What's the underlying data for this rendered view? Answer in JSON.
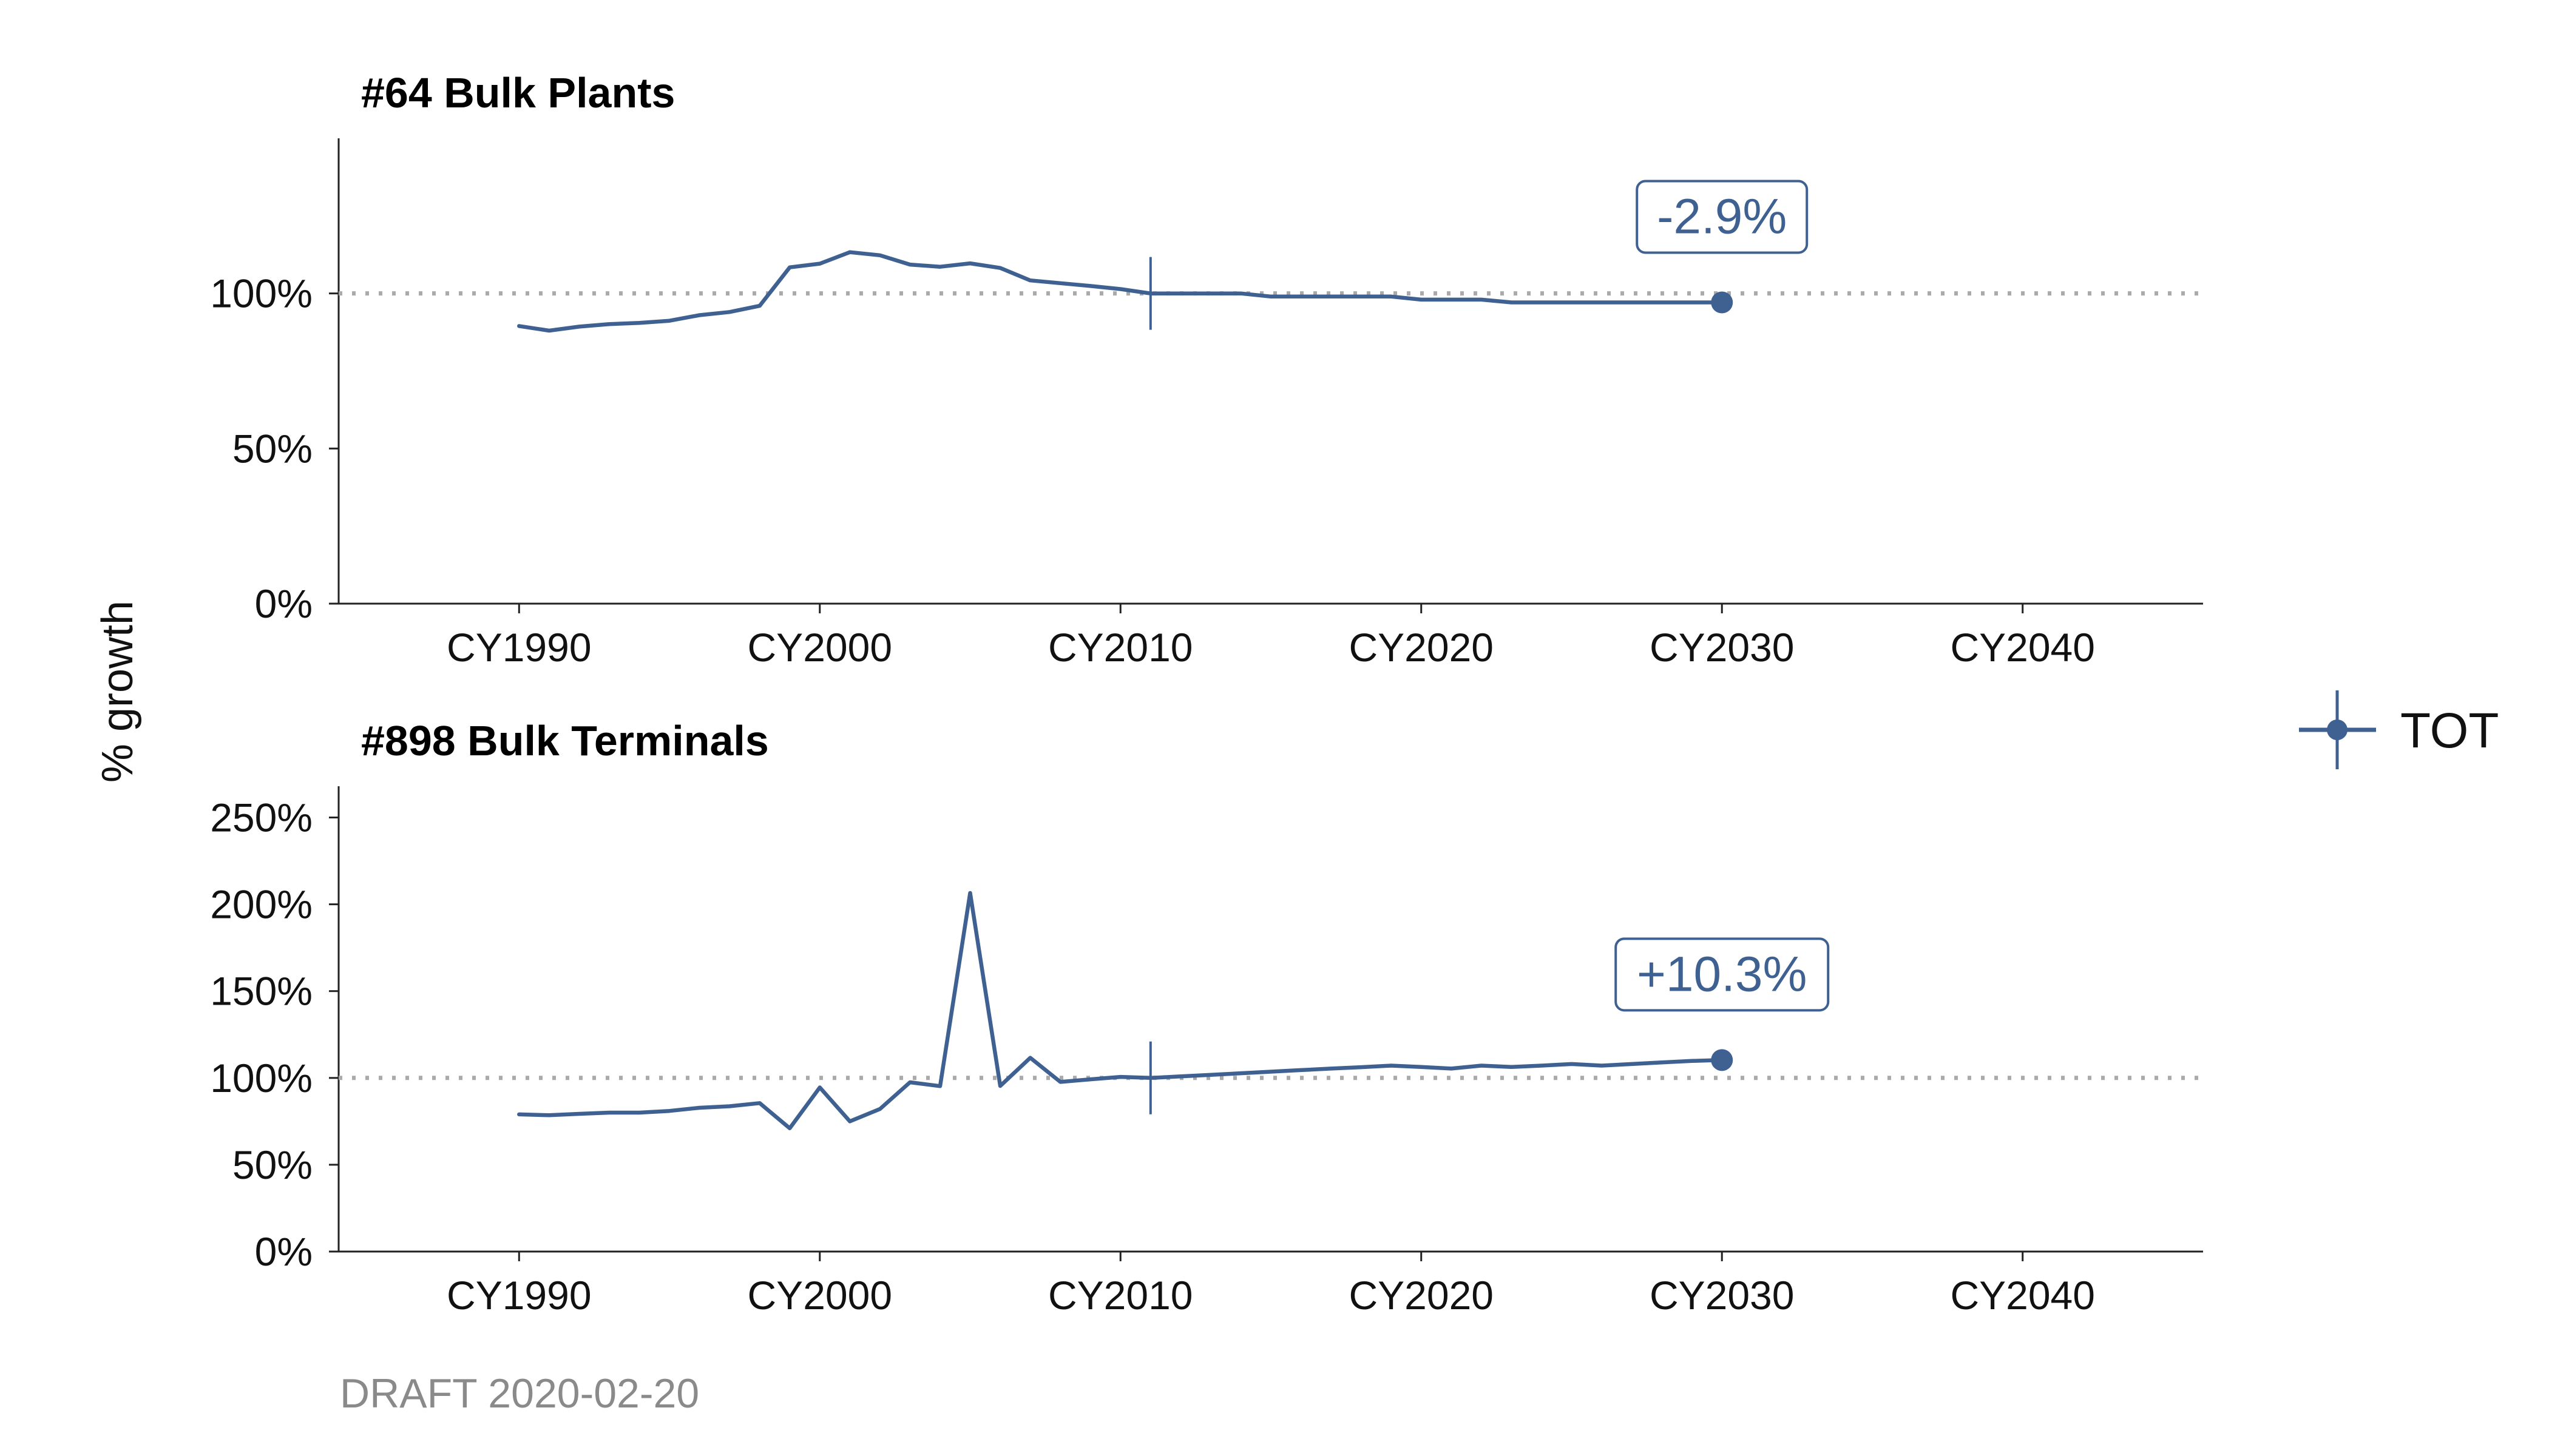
{
  "colors": {
    "series": "#3f6191",
    "reference": "#aaaaaa",
    "axis": "#222222",
    "caption": "#8a8a8a"
  },
  "ylabel": "% growth",
  "caption": "DRAFT 2020-02-20",
  "legend": {
    "label": "TOT",
    "position": "right"
  },
  "chart_data": [
    {
      "type": "line",
      "title": "#64 Bulk Plants",
      "xlabel": "",
      "ylabel": "% growth",
      "xlim": [
        1984,
        2046
      ],
      "ylim": [
        0,
        150
      ],
      "x_ticks": [
        1990,
        2000,
        2010,
        2020,
        2030,
        2040
      ],
      "x_tick_labels": [
        "CY1990",
        "CY2000",
        "CY2010",
        "CY2020",
        "CY2030",
        "CY2040"
      ],
      "y_ticks": [
        0,
        50,
        100
      ],
      "y_tick_labels": [
        "0%",
        "50%",
        "100%"
      ],
      "reference_y": 100,
      "base_year": 2011,
      "series": [
        {
          "name": "TOT",
          "x": [
            1990,
            1991,
            1992,
            1993,
            1994,
            1995,
            1996,
            1997,
            1998,
            1999,
            2000,
            2001,
            2002,
            2003,
            2004,
            2005,
            2006,
            2007,
            2008,
            2009,
            2010,
            2011,
            2012,
            2013,
            2014,
            2015,
            2016,
            2017,
            2018,
            2019,
            2020,
            2021,
            2022,
            2023,
            2024,
            2025,
            2026,
            2027,
            2028,
            2029,
            2030
          ],
          "y": [
            89.5,
            88,
            89.3,
            90.1,
            90.5,
            91.2,
            93,
            94,
            96,
            108.4,
            109.6,
            113.3,
            112.3,
            109.3,
            108.6,
            109.7,
            108.2,
            104.2,
            103.3,
            102.4,
            101.4,
            100,
            100,
            100,
            100,
            99,
            99,
            99,
            99,
            99,
            98,
            98,
            98,
            97.1,
            97.1,
            97.1,
            97.1,
            97.1,
            97.1,
            97.1,
            97.1
          ]
        }
      ],
      "end_point": {
        "x": 2030,
        "y": 97.1
      },
      "annotation": {
        "x": 2030,
        "y": 97.1,
        "text": "-2.9%"
      }
    },
    {
      "type": "line",
      "title": "#898 Bulk Terminals",
      "xlabel": "",
      "ylabel": "% growth",
      "xlim": [
        1984,
        2046
      ],
      "ylim": [
        0,
        268
      ],
      "x_ticks": [
        1990,
        2000,
        2010,
        2020,
        2030,
        2040
      ],
      "x_tick_labels": [
        "CY1990",
        "CY2000",
        "CY2010",
        "CY2020",
        "CY2030",
        "CY2040"
      ],
      "y_ticks": [
        0,
        50,
        100,
        150,
        200,
        250
      ],
      "y_tick_labels": [
        "0%",
        "50%",
        "100%",
        "150%",
        "200%",
        "250%"
      ],
      "reference_y": 100,
      "base_year": 2011,
      "series": [
        {
          "name": "TOT",
          "x": [
            1990,
            1991,
            1992,
            1993,
            1994,
            1995,
            1996,
            1997,
            1998,
            1999,
            2000,
            2001,
            2002,
            2003,
            2004,
            2005,
            2006,
            2007,
            2008,
            2009,
            2010,
            2011,
            2012,
            2013,
            2014,
            2015,
            2016,
            2017,
            2018,
            2019,
            2020,
            2021,
            2022,
            2023,
            2024,
            2025,
            2026,
            2027,
            2028,
            2029,
            2030
          ],
          "y": [
            79,
            78.5,
            79.3,
            80,
            80,
            81,
            82.8,
            83.7,
            85.5,
            71,
            94.5,
            75,
            82.1,
            97.5,
            95.3,
            206.5,
            95.4,
            111.6,
            97.7,
            99.2,
            100.6,
            100,
            100.9,
            101.8,
            102.7,
            103.6,
            104.5,
            105.4,
            106.2,
            107.1,
            106.3,
            105.4,
            107.1,
            106.3,
            107.1,
            108,
            107.1,
            108,
            108.9,
            109.8,
            110.3
          ]
        }
      ],
      "end_point": {
        "x": 2030,
        "y": 110.3
      },
      "annotation": {
        "x": 2030,
        "y": 110.3,
        "text": "+10.3%"
      }
    }
  ]
}
